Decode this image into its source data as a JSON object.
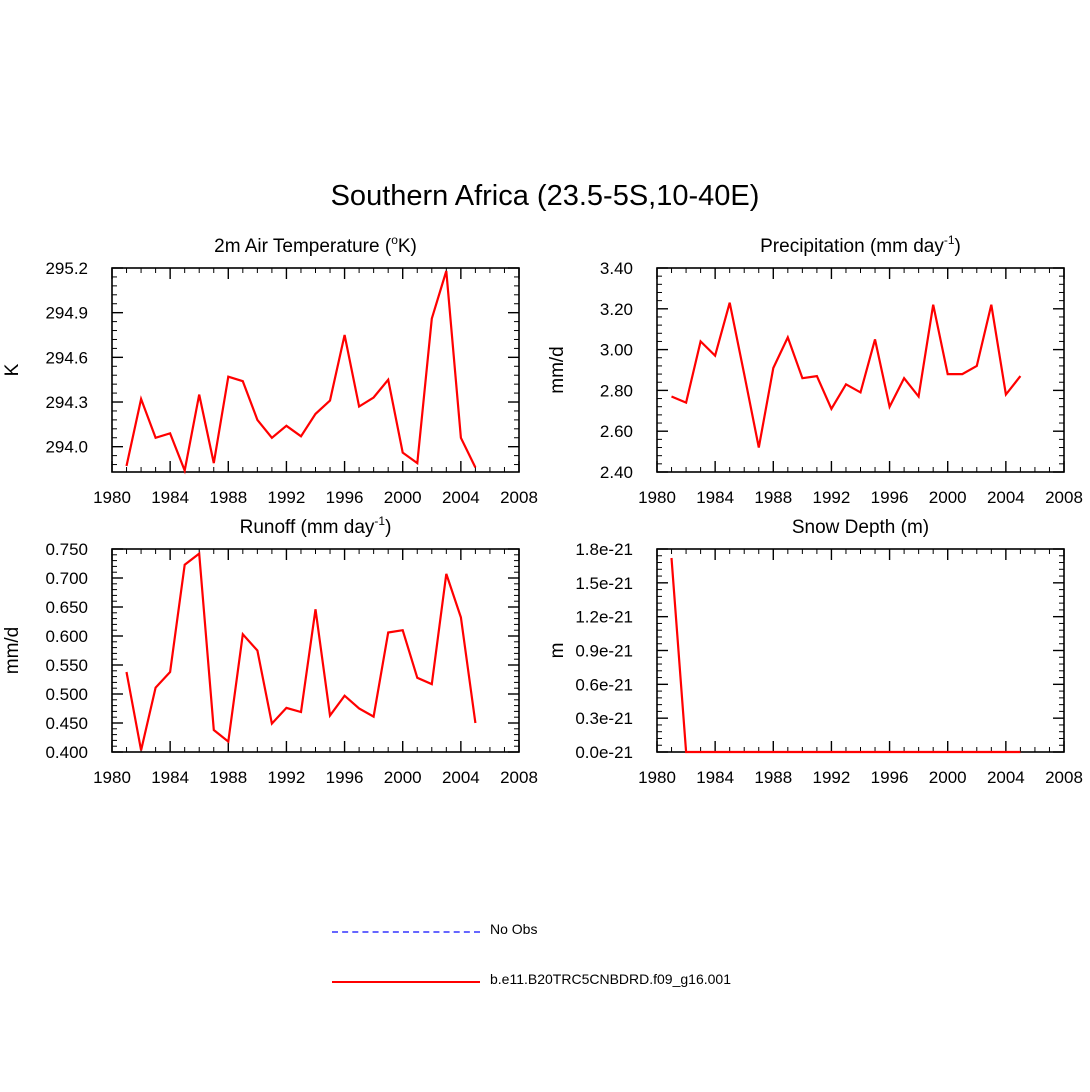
{
  "title": "Southern Africa (23.5-5S,10-40E)",
  "legend": [
    {
      "label": "No Obs",
      "color": "#6666ff",
      "style": "dashed"
    },
    {
      "label": "b.e11.B20TRC5CNBDRD.f09_g16.001",
      "color": "#ff0000",
      "style": "solid"
    }
  ],
  "chart_data": [
    {
      "type": "line",
      "title": "2m Air Temperature (",
      "title_sup": "o",
      "title_end": "K)",
      "ylabel": "K",
      "xlim": [
        1980,
        2008
      ],
      "ylim": [
        293.83,
        295.2
      ],
      "xticks": [
        1980,
        1984,
        1988,
        1992,
        1996,
        2000,
        2004,
        2008
      ],
      "yticks": [
        294.0,
        294.3,
        294.6,
        294.9,
        295.2
      ],
      "ytick_labels": [
        "294.0",
        "294.3",
        "294.6",
        "294.9",
        "295.2"
      ],
      "color": "#ff0000",
      "x": [
        1981,
        1982,
        1983,
        1984,
        1985,
        1986,
        1987,
        1988,
        1989,
        1990,
        1991,
        1992,
        1993,
        1994,
        1995,
        1996,
        1997,
        1998,
        1999,
        2000,
        2001,
        2002,
        2003,
        2004,
        2005
      ],
      "y": [
        293.87,
        294.32,
        294.06,
        294.09,
        293.84,
        294.35,
        293.89,
        294.47,
        294.44,
        294.18,
        294.06,
        294.14,
        294.07,
        294.22,
        294.31,
        294.75,
        294.27,
        294.33,
        294.45,
        293.96,
        293.89,
        294.86,
        295.18,
        294.06,
        293.86
      ]
    },
    {
      "type": "line",
      "title": "Precipitation (mm day",
      "title_sup": "-1",
      "title_end": ")",
      "ylabel": "mm/d",
      "xlim": [
        1980,
        2008
      ],
      "ylim": [
        2.4,
        3.4
      ],
      "xticks": [
        1980,
        1984,
        1988,
        1992,
        1996,
        2000,
        2004,
        2008
      ],
      "yticks": [
        2.4,
        2.6,
        2.8,
        3.0,
        3.2,
        3.4
      ],
      "ytick_labels": [
        "2.40",
        "2.60",
        "2.80",
        "3.00",
        "3.20",
        "3.40"
      ],
      "color": "#ff0000",
      "x": [
        1981,
        1982,
        1983,
        1984,
        1985,
        1986,
        1987,
        1988,
        1989,
        1990,
        1991,
        1992,
        1993,
        1994,
        1995,
        1996,
        1997,
        1998,
        1999,
        2000,
        2001,
        2002,
        2003,
        2004,
        2005
      ],
      "y": [
        2.77,
        2.74,
        3.04,
        2.97,
        3.23,
        2.88,
        2.52,
        2.91,
        3.06,
        2.86,
        2.87,
        2.71,
        2.83,
        2.79,
        3.05,
        2.72,
        2.86,
        2.77,
        3.22,
        2.88,
        2.88,
        2.92,
        3.22,
        2.78,
        2.87
      ]
    },
    {
      "type": "line",
      "title": "Runoff (mm day",
      "title_sup": "-1",
      "title_end": ")",
      "ylabel": "mm/d",
      "xlim": [
        1980,
        2008
      ],
      "ylim": [
        0.4,
        0.75
      ],
      "xticks": [
        1980,
        1984,
        1988,
        1992,
        1996,
        2000,
        2004,
        2008
      ],
      "yticks": [
        0.4,
        0.45,
        0.5,
        0.55,
        0.6,
        0.65,
        0.7,
        0.75
      ],
      "ytick_labels": [
        "0.400",
        "0.450",
        "0.500",
        "0.550",
        "0.600",
        "0.650",
        "0.700",
        "0.750"
      ],
      "color": "#ff0000",
      "x": [
        1981,
        1982,
        1983,
        1984,
        1985,
        1986,
        1987,
        1988,
        1989,
        1990,
        1991,
        1992,
        1993,
        1994,
        1995,
        1996,
        1997,
        1998,
        1999,
        2000,
        2001,
        2002,
        2003,
        2004,
        2005
      ],
      "y": [
        0.538,
        0.403,
        0.511,
        0.538,
        0.723,
        0.742,
        0.438,
        0.418,
        0.603,
        0.575,
        0.449,
        0.476,
        0.469,
        0.646,
        0.463,
        0.497,
        0.475,
        0.461,
        0.606,
        0.61,
        0.528,
        0.517,
        0.707,
        0.632,
        0.45
      ]
    },
    {
      "type": "line",
      "title": "Snow Depth (m)",
      "title_sup": "",
      "title_end": "",
      "ylabel": "m",
      "xlim": [
        1980,
        2008
      ],
      "ylim": [
        0,
        1.8e-21
      ],
      "xticks": [
        1980,
        1984,
        1988,
        1992,
        1996,
        2000,
        2004,
        2008
      ],
      "yticks": [
        0,
        3e-22,
        6e-22,
        9e-22,
        1.2e-21,
        1.5e-21,
        1.8e-21
      ],
      "ytick_labels": [
        "0.0e-21",
        "0.3e-21",
        "0.6e-21",
        "0.9e-21",
        "1.2e-21",
        "1.5e-21",
        "1.8e-21"
      ],
      "color": "#ff0000",
      "x": [
        1981,
        1982,
        1983,
        1984,
        1985,
        1986,
        1987,
        1988,
        1989,
        1990,
        1991,
        1992,
        1993,
        1994,
        1995,
        1996,
        1997,
        1998,
        1999,
        2000,
        2001,
        2002,
        2003,
        2004,
        2005
      ],
      "y": [
        1.72e-21,
        0,
        0,
        0,
        0,
        0,
        0,
        0,
        0,
        0,
        0,
        0,
        0,
        0,
        0,
        0,
        0,
        0,
        0,
        0,
        0,
        0,
        0,
        0,
        0
      ]
    }
  ]
}
